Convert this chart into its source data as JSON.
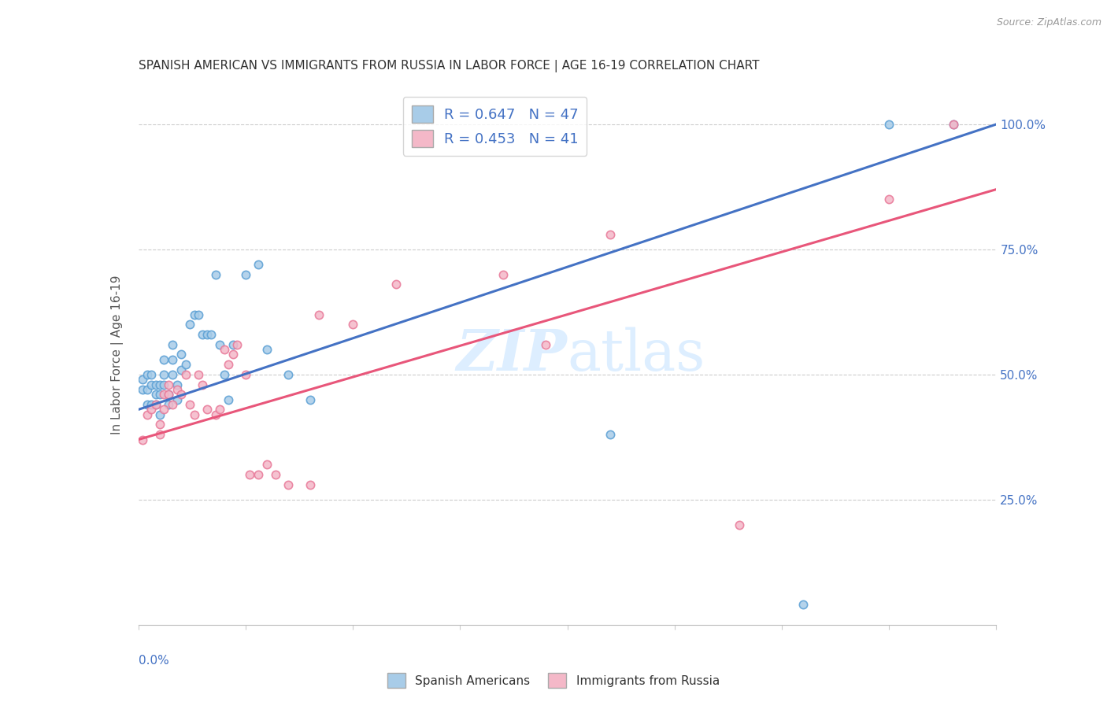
{
  "title": "SPANISH AMERICAN VS IMMIGRANTS FROM RUSSIA IN LABOR FORCE | AGE 16-19 CORRELATION CHART",
  "source": "Source: ZipAtlas.com",
  "ylabel": "In Labor Force | Age 16-19",
  "legend_blue_text": "R = 0.647   N = 47",
  "legend_pink_text": "R = 0.453   N = 41",
  "blue_color": "#a8cce8",
  "blue_edge_color": "#5a9fd4",
  "blue_line_color": "#4472c4",
  "pink_color": "#f4b8c8",
  "pink_edge_color": "#e87898",
  "pink_line_color": "#e8567a",
  "background_color": "#ffffff",
  "watermark_color": "#ddeeff",
  "axis_label_color": "#4472c4",
  "right_tick_color": "#4472c4",
  "xmin": 0.0,
  "xmax": 0.2,
  "ymin": 0.0,
  "ymax": 1.08,
  "blue_line_x0": 0.0,
  "blue_line_y0": 0.43,
  "blue_line_x1": 0.2,
  "blue_line_y1": 1.0,
  "pink_line_x0": 0.0,
  "pink_line_y0": 0.37,
  "pink_line_x1": 0.2,
  "pink_line_y1": 0.87,
  "blue_scatter_x": [
    0.001,
    0.001,
    0.002,
    0.002,
    0.002,
    0.003,
    0.003,
    0.003,
    0.004,
    0.004,
    0.004,
    0.005,
    0.005,
    0.005,
    0.006,
    0.006,
    0.006,
    0.007,
    0.007,
    0.008,
    0.008,
    0.008,
    0.009,
    0.009,
    0.01,
    0.01,
    0.011,
    0.012,
    0.013,
    0.014,
    0.015,
    0.016,
    0.017,
    0.018,
    0.019,
    0.02,
    0.021,
    0.022,
    0.025,
    0.028,
    0.03,
    0.035,
    0.04,
    0.11,
    0.155,
    0.175,
    0.19
  ],
  "blue_scatter_y": [
    0.47,
    0.49,
    0.44,
    0.47,
    0.5,
    0.44,
    0.48,
    0.5,
    0.44,
    0.46,
    0.48,
    0.42,
    0.46,
    0.48,
    0.48,
    0.5,
    0.53,
    0.44,
    0.46,
    0.5,
    0.53,
    0.56,
    0.45,
    0.48,
    0.51,
    0.54,
    0.52,
    0.6,
    0.62,
    0.62,
    0.58,
    0.58,
    0.58,
    0.7,
    0.56,
    0.5,
    0.45,
    0.56,
    0.7,
    0.72,
    0.55,
    0.5,
    0.45,
    0.38,
    0.04,
    1.0,
    1.0
  ],
  "pink_scatter_x": [
    0.001,
    0.002,
    0.003,
    0.004,
    0.005,
    0.005,
    0.006,
    0.006,
    0.007,
    0.007,
    0.008,
    0.009,
    0.01,
    0.011,
    0.012,
    0.013,
    0.014,
    0.015,
    0.016,
    0.018,
    0.019,
    0.02,
    0.021,
    0.022,
    0.023,
    0.025,
    0.026,
    0.028,
    0.03,
    0.032,
    0.035,
    0.04,
    0.042,
    0.05,
    0.06,
    0.085,
    0.095,
    0.11,
    0.14,
    0.175,
    0.19
  ],
  "pink_scatter_y": [
    0.37,
    0.42,
    0.43,
    0.44,
    0.38,
    0.4,
    0.43,
    0.46,
    0.46,
    0.48,
    0.44,
    0.47,
    0.46,
    0.5,
    0.44,
    0.42,
    0.5,
    0.48,
    0.43,
    0.42,
    0.43,
    0.55,
    0.52,
    0.54,
    0.56,
    0.5,
    0.3,
    0.3,
    0.32,
    0.3,
    0.28,
    0.28,
    0.62,
    0.6,
    0.68,
    0.7,
    0.56,
    0.78,
    0.2,
    0.85,
    1.0
  ]
}
